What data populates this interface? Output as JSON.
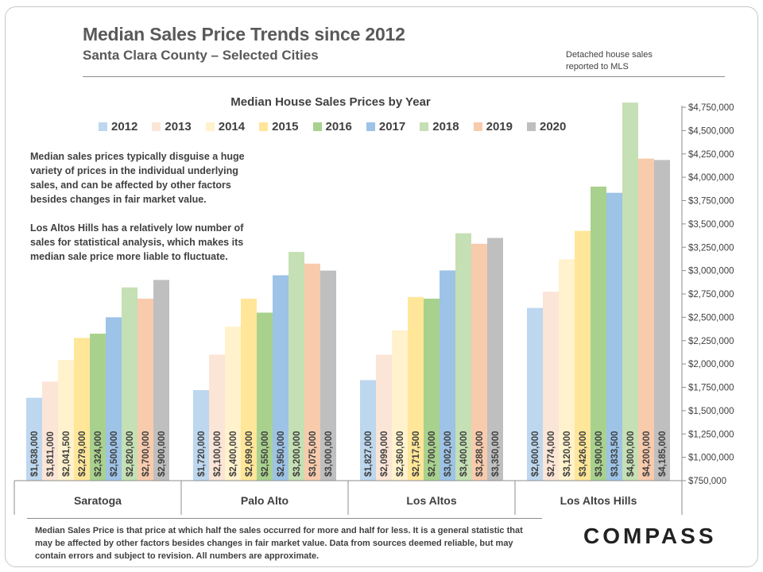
{
  "header": {
    "title": "Median Sales Price Trends since 2012",
    "subtitle": "Santa Clara County – Selected Cities",
    "source_note": "Detached house sales reported to MLS"
  },
  "commentary": {
    "paragraph1": "Median sales prices typically disguise a huge variety of prices in the individual underlying sales, and can be affected by other factors besides changes in fair market value.",
    "paragraph2": "Los Altos Hills has a relatively low number of sales for statistical analysis, which makes its median sale price more liable to fluctuate."
  },
  "footer": {
    "note": "Median Sales Price is that price at which half the sales occurred for more and half for less. It is a general statistic that may be affected by other factors besides changes in fair market value. Data from sources deemed reliable, but may contain errors and subject to revision.  All numbers are approximate.",
    "logo": "COMPASS"
  },
  "chart_data": {
    "type": "bar",
    "title": "Median House Sales Prices by Year",
    "categories": [
      "Saratoga",
      "Palo Alto",
      "Los Altos",
      "Los Altos Hills"
    ],
    "series": [
      {
        "name": "2012",
        "color": "#bdd7ee",
        "values": [
          1638000,
          1720000,
          1827000,
          2600000
        ],
        "labels": [
          "$1,638,000",
          "$1,720,000",
          "$1,827,000",
          "$2,600,000"
        ]
      },
      {
        "name": "2013",
        "color": "#fbe5d6",
        "values": [
          1811000,
          2100000,
          2099000,
          2774000
        ],
        "labels": [
          "$1,811,000",
          "$2,100,000",
          "$2,099,000",
          "$2,774,000"
        ]
      },
      {
        "name": "2014",
        "color": "#fff2cc",
        "values": [
          2041500,
          2400000,
          2360000,
          3120000
        ],
        "labels": [
          "$2,041,500",
          "$2,400,000",
          "$2,360,000",
          "$3,120,000"
        ]
      },
      {
        "name": "2015",
        "color": "#ffe699",
        "values": [
          2279000,
          2699000,
          2717500,
          3426000
        ],
        "labels": [
          "$2,279,000",
          "$2,699,000",
          "$2,717,500",
          "$3,426,000"
        ]
      },
      {
        "name": "2016",
        "color": "#a9d18e",
        "values": [
          2324000,
          2550000,
          2700000,
          3900000
        ],
        "labels": [
          "$2,324,000",
          "$2,550,000",
          "$2,700,000",
          "$3,900,000"
        ]
      },
      {
        "name": "2017",
        "color": "#9dc3e6",
        "values": [
          2500000,
          2950000,
          3002000,
          3833500
        ],
        "labels": [
          "$2,500,000",
          "$2,950,000",
          "$3,002,000",
          "$3,833,500"
        ]
      },
      {
        "name": "2018",
        "color": "#c5e0b4",
        "values": [
          2820000,
          3200000,
          3400000,
          4800000
        ],
        "labels": [
          "$2,820,000",
          "$3,200,000",
          "$3,400,000",
          "$4,800,000"
        ]
      },
      {
        "name": "2019",
        "color": "#f8cbad",
        "values": [
          2700000,
          3075000,
          3288000,
          4200000
        ],
        "labels": [
          "$2,700,000",
          "$3,075,000",
          "$3,288,000",
          "$4,200,000"
        ]
      },
      {
        "name": "2020",
        "color": "#bfbfbf",
        "values": [
          2900000,
          3000000,
          3350000,
          4185000
        ],
        "labels": [
          "$2,900,000",
          "$3,000,000",
          "$3,350,000",
          "$4,185,000"
        ]
      }
    ],
    "ylim": [
      750000,
      4750000
    ],
    "yticks": [
      750000,
      1000000,
      1250000,
      1500000,
      1750000,
      2000000,
      2250000,
      2500000,
      2750000,
      3000000,
      3250000,
      3500000,
      3750000,
      4000000,
      4250000,
      4500000,
      4750000
    ],
    "ytick_labels": [
      "$750,000",
      "$1,000,000",
      "$1,250,000",
      "$1,500,000",
      "$1,750,000",
      "$2,000,000",
      "$2,250,000",
      "$2,500,000",
      "$2,750,000",
      "$3,000,000",
      "$3,250,000",
      "$3,500,000",
      "$3,750,000",
      "$4,000,000",
      "$4,250,000",
      "$4,500,000",
      "$4,750,000"
    ],
    "y_axis_side": "right",
    "grid": false,
    "legend_position": "top",
    "data_labels": "rotated inside bars"
  }
}
